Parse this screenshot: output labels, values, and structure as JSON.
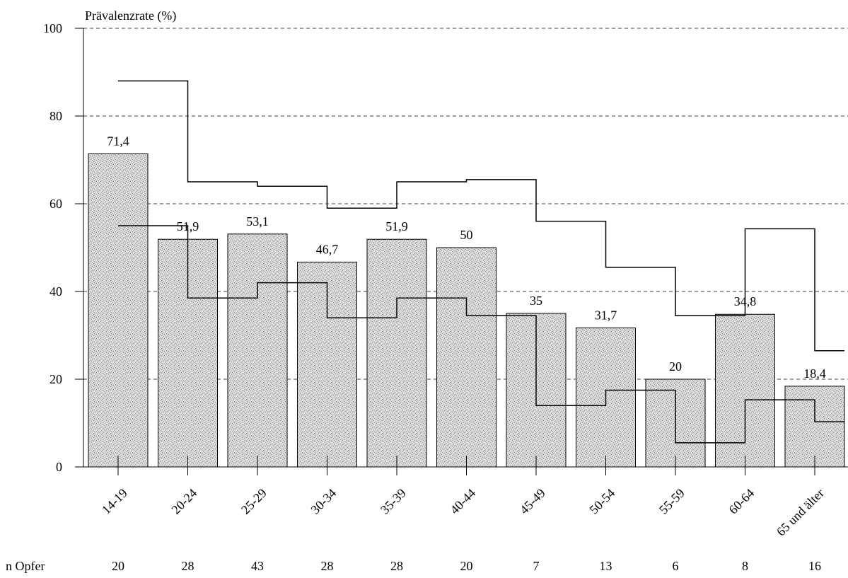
{
  "chart_data": {
    "type": "bar",
    "ylabel": "Prävalenzrate (%)",
    "ylim": [
      0,
      100
    ],
    "yticks": [
      0,
      20,
      40,
      60,
      80,
      100
    ],
    "grid": "horizontal-dashed",
    "categories": [
      "14-19",
      "20-24",
      "25-29",
      "30-34",
      "35-39",
      "40-44",
      "45-49",
      "50-54",
      "55-59",
      "60-64",
      "65 und älter"
    ],
    "values": [
      71.4,
      51.9,
      53.1,
      46.7,
      51.9,
      50,
      35,
      31.7,
      20,
      34.8,
      18.4
    ],
    "value_labels": [
      "71,4",
      "51,9",
      "53,1",
      "46,7",
      "51,9",
      "50",
      "35",
      "31,7",
      "20",
      "34,8",
      "18,4"
    ],
    "upper_bound": [
      88,
      65,
      64,
      59,
      65,
      65.5,
      56,
      45.5,
      34.5,
      54.3,
      26.5
    ],
    "lower_bound": [
      55,
      38.5,
      42,
      34,
      38.5,
      34.5,
      14,
      17.5,
      5.5,
      15.3,
      10.3
    ],
    "count_label": "n Opfer",
    "counts": [
      "20",
      "28",
      "43",
      "28",
      "28",
      "20",
      "7",
      "13",
      "6",
      "8",
      "16"
    ],
    "colors": {
      "bar_fill": "#dcdcdc",
      "bar_speckle": "#8a8a8a",
      "lines": "#000000"
    }
  }
}
